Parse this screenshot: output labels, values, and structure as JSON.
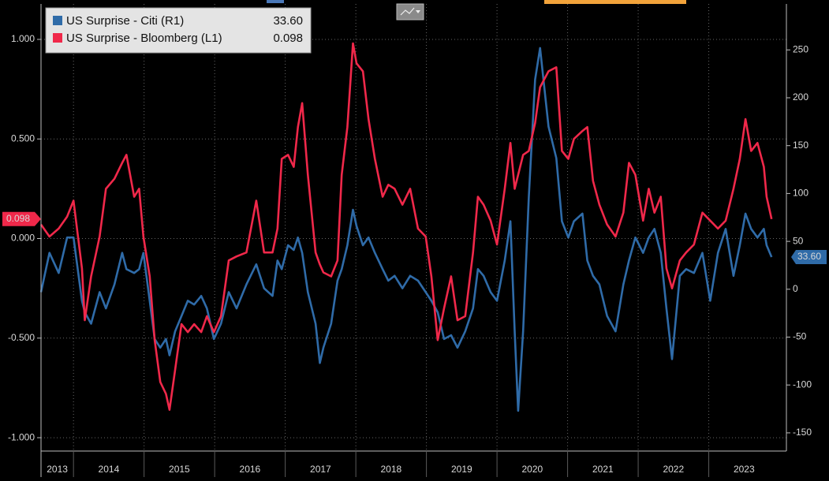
{
  "chart_data": {
    "type": "line",
    "x": [
      2013.54,
      2013.66,
      2013.79,
      2013.91,
      2014.0,
      2014.12,
      2014.16,
      2014.25,
      2014.37,
      2014.46,
      2014.58,
      2014.69,
      2014.75,
      2014.86,
      2014.93,
      2014.99,
      2015.08,
      2015.15,
      2015.23,
      2015.31,
      2015.36,
      2015.44,
      2015.53,
      2015.62,
      2015.71,
      2015.81,
      2015.89,
      2015.99,
      2016.09,
      2016.2,
      2016.31,
      2016.45,
      2016.59,
      2016.7,
      2016.82,
      2016.89,
      2016.95,
      2017.04,
      2017.12,
      2017.18,
      2017.24,
      2017.32,
      2017.43,
      2017.49,
      2017.54,
      2017.65,
      2017.74,
      2017.8,
      2017.88,
      2017.96,
      2018.01,
      2018.1,
      2018.18,
      2018.27,
      2018.38,
      2018.46,
      2018.55,
      2018.66,
      2018.77,
      2018.88,
      2018.99,
      2019.07,
      2019.16,
      2019.25,
      2019.35,
      2019.44,
      2019.55,
      2019.66,
      2019.73,
      2019.81,
      2019.91,
      2020.0,
      2020.11,
      2020.19,
      2020.25,
      2020.3,
      2020.37,
      2020.45,
      2020.54,
      2020.61,
      2020.73,
      2020.84,
      2020.92,
      2021.01,
      2021.09,
      2021.21,
      2021.28,
      2021.36,
      2021.45,
      2021.56,
      2021.68,
      2021.79,
      2021.87,
      2021.96,
      2022.07,
      2022.15,
      2022.23,
      2022.32,
      2022.4,
      2022.48,
      2022.59,
      2022.68,
      2022.79,
      2022.91,
      2023.02,
      2023.13,
      2023.24,
      2023.35,
      2023.44,
      2023.52,
      2023.6,
      2023.69,
      2023.78,
      2023.82,
      2023.89
    ],
    "series": [
      {
        "name": "US Surprise - Citi (R1)",
        "color": "#2f6ba8",
        "axis": "y2",
        "values": [
          -3,
          38,
          17,
          54,
          54,
          -12,
          -24,
          -36,
          -3,
          -20,
          5,
          38,
          21,
          17,
          21,
          38,
          -12,
          -52,
          -61,
          -52,
          -69,
          -44,
          -28,
          -12,
          -16,
          -7,
          -20,
          -52,
          -36,
          -3,
          -20,
          5,
          26,
          1,
          -7,
          30,
          21,
          46,
          41,
          54,
          38,
          -3,
          -36,
          -77,
          -61,
          -36,
          9,
          21,
          46,
          83,
          66,
          46,
          54,
          38,
          21,
          9,
          14,
          1,
          14,
          9,
          -3,
          -12,
          -24,
          -52,
          -48,
          -61,
          -44,
          -20,
          21,
          14,
          -3,
          -12,
          30,
          71,
          -44,
          -127,
          -44,
          96,
          219,
          252,
          170,
          137,
          71,
          54,
          71,
          79,
          30,
          14,
          5,
          -28,
          -44,
          5,
          30,
          54,
          38,
          54,
          63,
          38,
          -20,
          -73,
          14,
          21,
          17,
          38,
          -12,
          38,
          63,
          14,
          46,
          79,
          63,
          54,
          63,
          46,
          33.6
        ],
        "value_labels": [
          null,
          null,
          null,
          null,
          null,
          null,
          null,
          null,
          null,
          null,
          null,
          null,
          null,
          null,
          null,
          null,
          null,
          null,
          null,
          null,
          null,
          null,
          null,
          null,
          null,
          null,
          null,
          null,
          null,
          null,
          null,
          null,
          null,
          null,
          null,
          null,
          null,
          null,
          null,
          null,
          null,
          null,
          null,
          null,
          null,
          null,
          null,
          null,
          null,
          null,
          null,
          null,
          null,
          null,
          null,
          null,
          null,
          null,
          null,
          null,
          null,
          null,
          null,
          null,
          null,
          null,
          null,
          null,
          null,
          null,
          null,
          null,
          null,
          null,
          null,
          null,
          null,
          null,
          null,
          null,
          null,
          null,
          null,
          null,
          null,
          null,
          null,
          null,
          null,
          null,
          null,
          null,
          null,
          null,
          null,
          null,
          null,
          null,
          null,
          null,
          null,
          null,
          null,
          null,
          null,
          null,
          null,
          null,
          null,
          null,
          null,
          null,
          null,
          null,
          "33.60"
        ]
      },
      {
        "name": "US Surprise - Bloomberg (L1)",
        "color": "#f0284a",
        "axis": "y",
        "values": [
          0.07,
          0.01,
          0.05,
          0.11,
          0.19,
          -0.15,
          -0.41,
          -0.19,
          0.01,
          0.25,
          0.3,
          0.38,
          0.42,
          0.21,
          0.25,
          0.01,
          -0.19,
          -0.51,
          -0.72,
          -0.78,
          -0.86,
          -0.66,
          -0.43,
          -0.47,
          -0.43,
          -0.47,
          -0.39,
          -0.47,
          -0.39,
          -0.11,
          -0.09,
          -0.07,
          0.19,
          -0.07,
          -0.07,
          0.05,
          0.4,
          0.42,
          0.36,
          0.56,
          0.68,
          0.32,
          -0.07,
          -0.13,
          -0.17,
          -0.19,
          -0.11,
          0.32,
          0.56,
          0.98,
          0.88,
          0.84,
          0.6,
          0.4,
          0.21,
          0.27,
          0.25,
          0.17,
          0.25,
          0.05,
          0.01,
          -0.19,
          -0.51,
          -0.35,
          -0.19,
          -0.41,
          -0.39,
          -0.07,
          0.21,
          0.17,
          0.09,
          -0.03,
          0.25,
          0.48,
          0.25,
          0.32,
          0.42,
          0.44,
          0.58,
          0.76,
          0.84,
          0.86,
          0.44,
          0.4,
          0.5,
          0.54,
          0.56,
          0.29,
          0.17,
          0.07,
          0.01,
          0.13,
          0.38,
          0.32,
          0.09,
          0.25,
          0.13,
          0.21,
          -0.15,
          -0.25,
          -0.11,
          -0.07,
          -0.03,
          0.13,
          0.09,
          0.05,
          0.09,
          0.25,
          0.4,
          0.6,
          0.44,
          0.48,
          0.36,
          0.21,
          0.098
        ]
      }
    ],
    "xlim": [
      2013.54,
      2024.1
    ],
    "xticks": [
      2013,
      2014,
      2015,
      2016,
      2017,
      2018,
      2019,
      2020,
      2021,
      2022,
      2023
    ],
    "ylim": [
      -1.067,
      1.178
    ],
    "yticks": [
      {
        "value": -1,
        "label": "-1.000"
      },
      {
        "value": -0.5,
        "label": "-0.500"
      },
      {
        "value": 0,
        "label": "0.000"
      },
      {
        "value": 0.5,
        "label": "0.500"
      },
      {
        "value": 1,
        "label": "1.000"
      }
    ],
    "y2lim": [
      -169,
      298
    ],
    "y2ticks": [
      -150,
      -100,
      -50,
      0,
      50,
      100,
      150,
      200,
      250
    ],
    "grid": true,
    "legend": "top-left"
  }
}
